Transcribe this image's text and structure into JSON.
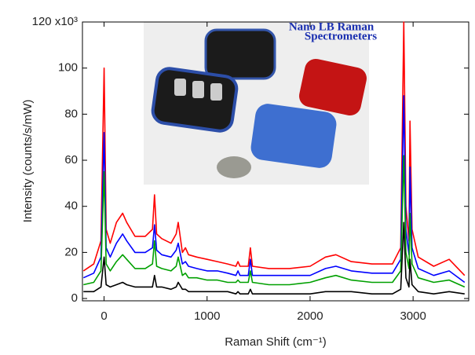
{
  "chart_data": {
    "type": "line",
    "xlabel": "Raman Shift (cm⁻¹)",
    "ylabel": "Intensity (counts/s/mW)",
    "inset_title": [
      "Nano LB Raman",
      "Spectrometers"
    ],
    "x": [
      -200,
      -100,
      -30,
      0,
      20,
      60,
      120,
      180,
      220,
      300,
      400,
      470,
      490,
      510,
      560,
      650,
      700,
      720,
      760,
      790,
      820,
      900,
      1000,
      1100,
      1200,
      1280,
      1300,
      1320,
      1400,
      1420,
      1440,
      1600,
      1800,
      2000,
      2150,
      2250,
      2400,
      2600,
      2800,
      2880,
      2910,
      2930,
      2960,
      2970,
      2990,
      3050,
      3200,
      3350,
      3500
    ],
    "series": [
      {
        "color": "#ff0000",
        "values": [
          12,
          15,
          25,
          100,
          30,
          24,
          33,
          37,
          33,
          27,
          27,
          30,
          45,
          28,
          26,
          24,
          28,
          33,
          20,
          22,
          19,
          18,
          17,
          16,
          15,
          14,
          16,
          14,
          14,
          22,
          14,
          13,
          13,
          14,
          18,
          19,
          16,
          15,
          15,
          22,
          120,
          40,
          25,
          77,
          30,
          18,
          14,
          17,
          10
        ]
      },
      {
        "color": "#0000ff",
        "values": [
          9,
          11,
          18,
          72,
          22,
          18,
          24,
          28,
          25,
          20,
          20,
          22,
          32,
          21,
          19,
          18,
          21,
          24,
          15,
          16,
          14,
          13,
          12,
          12,
          11,
          10,
          12,
          10,
          10,
          17,
          10,
          10,
          10,
          10,
          13,
          14,
          12,
          11,
          11,
          17,
          88,
          30,
          19,
          57,
          22,
          13,
          10,
          12,
          7
        ]
      },
      {
        "color": "#00a000",
        "values": [
          6,
          7,
          12,
          55,
          15,
          12,
          16,
          19,
          17,
          13,
          13,
          15,
          25,
          14,
          13,
          12,
          14,
          18,
          10,
          11,
          9,
          9,
          8,
          8,
          7,
          7,
          8,
          7,
          7,
          12,
          7,
          6,
          6,
          7,
          9,
          10,
          8,
          7,
          7,
          12,
          62,
          20,
          13,
          37,
          15,
          9,
          7,
          8,
          5
        ]
      },
      {
        "color": "#000000",
        "values": [
          3,
          3,
          5,
          18,
          6,
          5,
          6,
          7,
          6,
          5,
          5,
          5,
          10,
          5,
          5,
          4,
          5,
          7,
          4,
          4,
          3,
          3,
          3,
          3,
          3,
          2,
          3,
          2,
          2,
          4,
          2,
          2,
          2,
          2,
          3,
          3,
          3,
          2,
          2,
          4,
          33,
          9,
          5,
          17,
          6,
          3,
          2,
          3,
          2
        ]
      }
    ],
    "xlim": [
      -210,
      3540
    ],
    "xticks": [
      0,
      1000,
      2000,
      3000
    ],
    "ylim": [
      -1,
      120
    ],
    "yticks": [
      0,
      20,
      40,
      60,
      80,
      100,
      {
        "value": 120,
        "label": "120 x10³"
      }
    ]
  }
}
